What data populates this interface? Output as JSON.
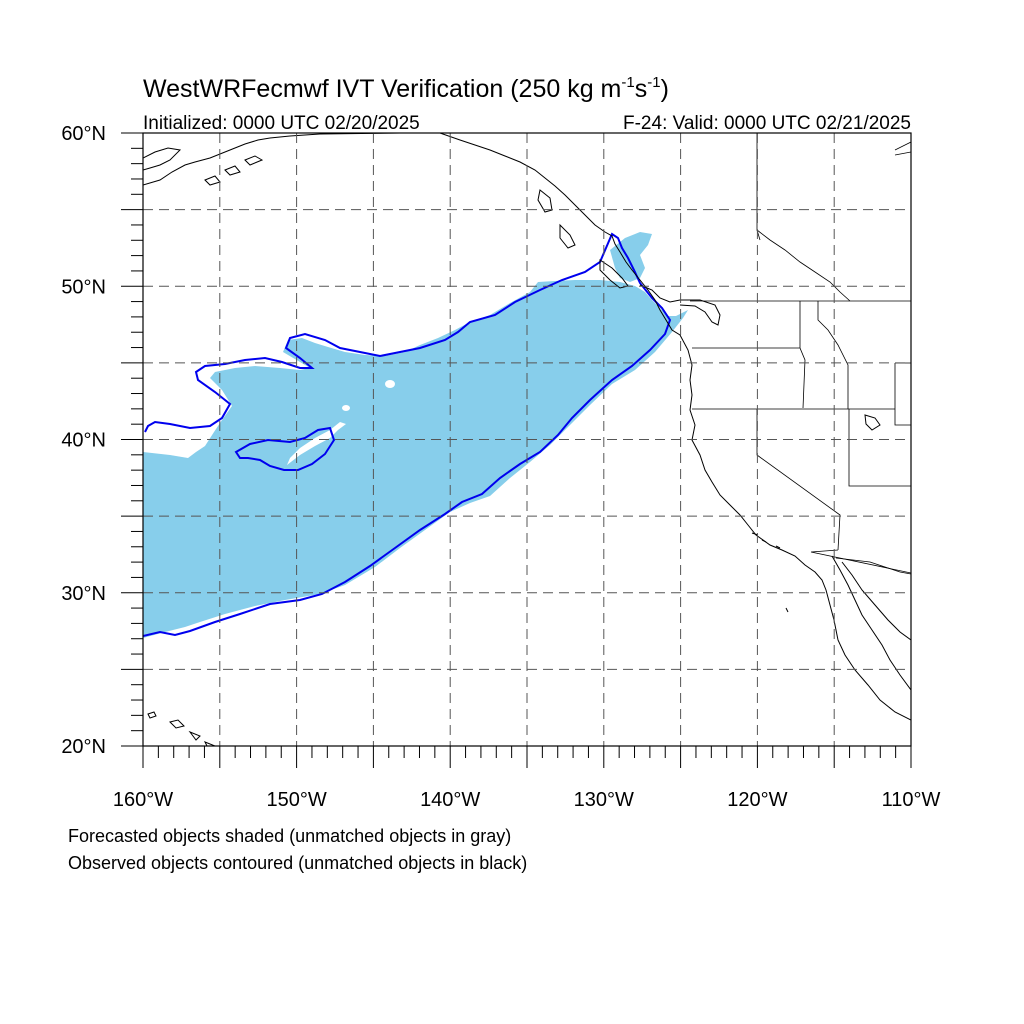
{
  "title": {
    "main_prefix": "WestWRFecmwf IVT Verification (250 kg m",
    "exp1": "-1",
    "mid": "s",
    "exp2": "-1",
    "suffix": ")"
  },
  "initialized": "Initialized: 0000 UTC 02/20/2025",
  "valid": "F-24: Valid: 0000 UTC 02/21/2025",
  "lat_labels": [
    {
      "value": 60,
      "text": "60°N"
    },
    {
      "value": 50,
      "text": "50°N"
    },
    {
      "value": 40,
      "text": "40°N"
    },
    {
      "value": 30,
      "text": "30°N"
    },
    {
      "value": 20,
      "text": "20°N"
    }
  ],
  "lon_labels": [
    {
      "value": -160,
      "text": "160°W"
    },
    {
      "value": -150,
      "text": "150°W"
    },
    {
      "value": -140,
      "text": "140°W"
    },
    {
      "value": -130,
      "text": "130°W"
    },
    {
      "value": -120,
      "text": "120°W"
    },
    {
      "value": -110,
      "text": "110°W"
    }
  ],
  "notes": {
    "line1": "Forecasted objects shaded (unmatched objects in gray)",
    "line2": "Observed objects contoured (unmatched objects in black)"
  },
  "colors": {
    "forecast_fill": "#87ceeb",
    "observed_contour": "#0000ee",
    "coastline": "#000000"
  },
  "map_extent": {
    "lon_min": -160,
    "lon_max": -110,
    "lat_min": 20,
    "lat_max": 60
  }
}
